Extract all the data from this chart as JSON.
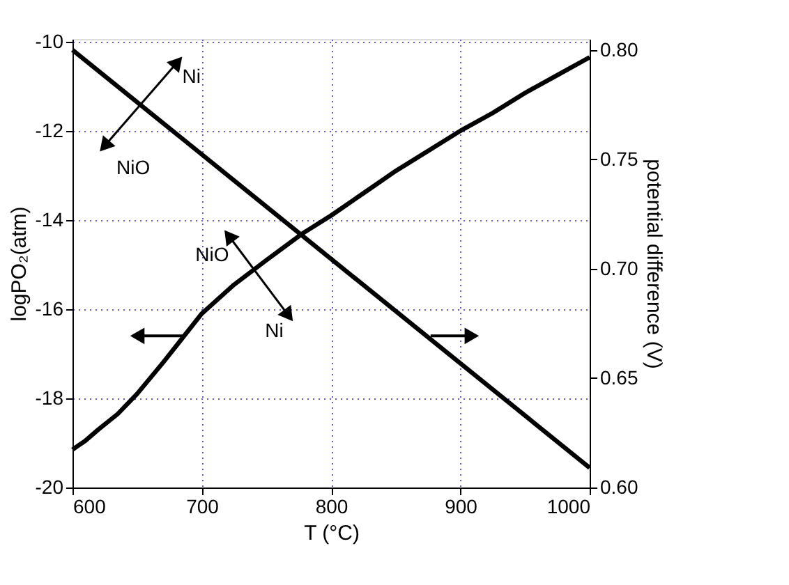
{
  "chart_data": {
    "type": "line",
    "xlabel": "T (°C)",
    "ylabel": "logPO₂(atm)",
    "y2label": "potential difference (V)",
    "xlim": [
      600,
      1000
    ],
    "xticks": [
      600,
      700,
      800,
      900,
      1000
    ],
    "ylim": [
      -20,
      -9.94
    ],
    "yticks": [
      -20,
      -18,
      -16,
      -14,
      -12,
      -10
    ],
    "y2lim": [
      0.6,
      0.805
    ],
    "y2ticks": [
      {
        "value": 0.6,
        "label": "0.60"
      },
      0.65,
      {
        "value": 0.7,
        "label": "0.70"
      },
      0.75,
      {
        "value": 0.8,
        "label": "0.80"
      }
    ],
    "grid": true,
    "line_style": "solid",
    "marker": "none",
    "series": [
      {
        "color": "#000000",
        "x": [
          600,
          605,
          610,
          620,
          635,
          650,
          670,
          700,
          725,
          750,
          778,
          800,
          825,
          850,
          875,
          900,
          925,
          950,
          975,
          1000
        ],
        "values": [
          -19.15,
          -19.05,
          -18.95,
          -18.7,
          -18.35,
          -17.9,
          -17.2,
          -16.1,
          -15.45,
          -14.9,
          -14.3,
          -13.9,
          -13.4,
          -12.9,
          -12.45,
          -12.0,
          -11.6,
          -11.15,
          -10.75,
          -10.35
        ]
      },
      {
        "color": "#000000",
        "axis": "y2",
        "x": [
          600,
          1000
        ],
        "values": [
          0.8,
          0.609
        ]
      }
    ],
    "annotations": [
      "Ni",
      "NiO",
      "NiO",
      "Ni"
    ]
  }
}
